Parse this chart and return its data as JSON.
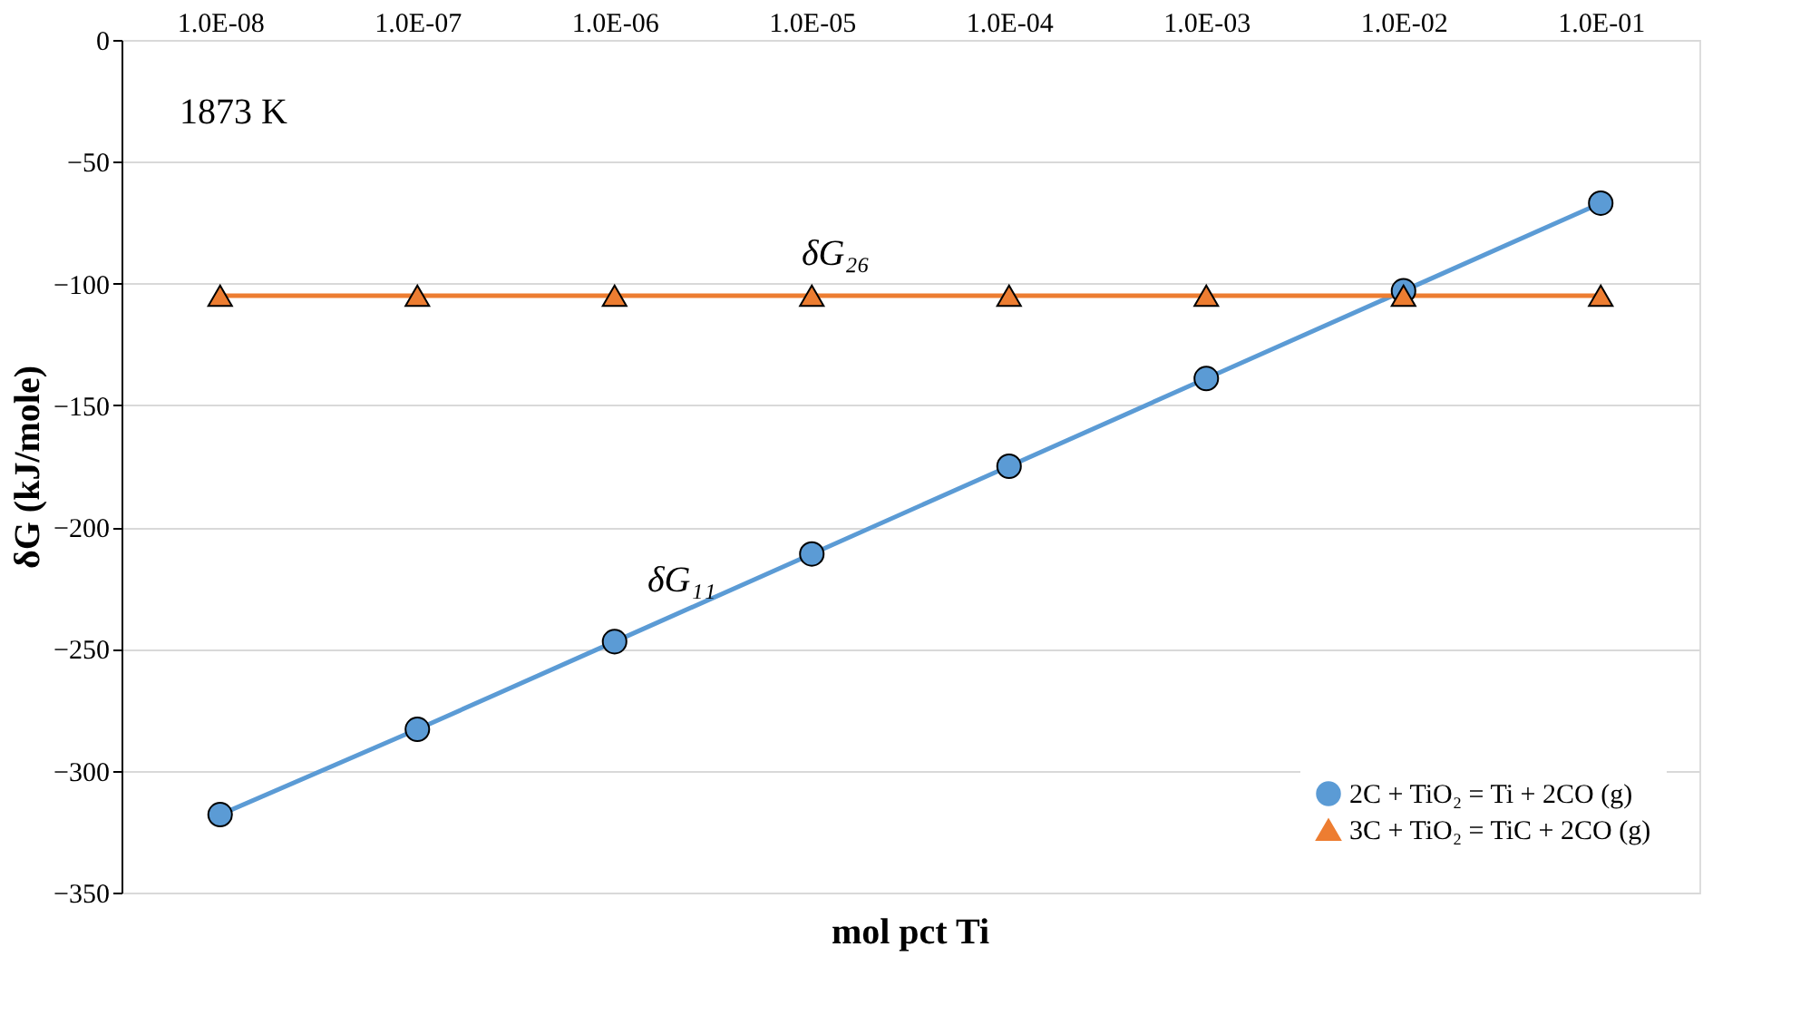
{
  "chart_data": {
    "type": "line",
    "xlabel": "mol pct Ti",
    "ylabel": "δG (kJ/mole)",
    "categories": [
      "1.0E-08",
      "1.0E-07",
      "1.0E-06",
      "1.0E-05",
      "1.0E-04",
      "1.0E-03",
      "1.0E-02",
      "1.0E-01"
    ],
    "series": [
      {
        "name": "2C + TiO₂ = Ti + 2CO (g)",
        "color": "#5b9bd5",
        "marker": "circle",
        "values": [
          -318,
          -283,
          -247,
          -211,
          -175,
          -139,
          -103,
          -67
        ]
      },
      {
        "name": "3C + TiO₂ = TiC + 2CO (g)",
        "color": "#ed7d31",
        "marker": "triangle",
        "values": [
          -105,
          -105,
          -105,
          -105,
          -105,
          -105,
          -105,
          -105
        ]
      }
    ],
    "ylim": [
      -350,
      0
    ],
    "yticks": [
      -350,
      -300,
      -250,
      -200,
      -150,
      -100,
      -50,
      0
    ],
    "grid": "y",
    "legend": "bottom right",
    "line_style": "solid",
    "annotations": [
      "1873 K",
      "δG₂₆",
      "δG₁₁"
    ]
  }
}
